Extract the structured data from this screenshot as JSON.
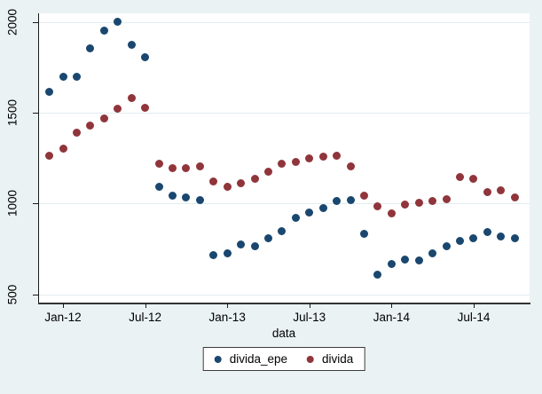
{
  "chart_data": {
    "type": "scatter",
    "title": "",
    "xlabel": "data",
    "ylabel": "",
    "grid": true,
    "legend_position": "bottom-center",
    "x_categories": [
      "Dec-11",
      "Jan-12",
      "Feb-12",
      "Mar-12",
      "Apr-12",
      "May-12",
      "Jun-12",
      "Jul-12",
      "Aug-12",
      "Sep-12",
      "Oct-12",
      "Nov-12",
      "Dec-12",
      "Jan-13",
      "Feb-13",
      "Mar-13",
      "Apr-13",
      "May-13",
      "Jun-13",
      "Jul-13",
      "Aug-13",
      "Sep-13",
      "Oct-13",
      "Nov-13",
      "Dec-13",
      "Jan-14",
      "Feb-14",
      "Mar-14",
      "Apr-14",
      "May-14",
      "Jun-14",
      "Jul-14",
      "Aug-14",
      "Sep-14",
      "Oct-14"
    ],
    "x_ticks": [
      {
        "index": 1,
        "label": "Jan-12"
      },
      {
        "index": 7,
        "label": "Jul-12"
      },
      {
        "index": 13,
        "label": "Jan-13"
      },
      {
        "index": 19,
        "label": "Jul-13"
      },
      {
        "index": 25,
        "label": "Jan-14"
      },
      {
        "index": 31,
        "label": "Jul-14"
      }
    ],
    "y_ticks": [
      {
        "value": 500,
        "label": "500"
      },
      {
        "value": 1000,
        "label": "1000"
      },
      {
        "value": 1500,
        "label": "1500"
      },
      {
        "value": 2000,
        "label": "2000"
      }
    ],
    "ylim": [
      455,
      2045
    ],
    "series": [
      {
        "name": "divida_epe",
        "color": "#1a476f",
        "values": [
          1615,
          1700,
          1700,
          1855,
          1950,
          2000,
          1875,
          1805,
          1090,
          1045,
          1035,
          1020,
          715,
          725,
          775,
          765,
          810,
          850,
          920,
          950,
          975,
          1015,
          1020,
          835,
          610,
          665,
          690,
          685,
          725,
          765,
          795,
          810,
          845,
          820,
          810
        ]
      },
      {
        "name": "divida",
        "color": "#90353b",
        "values": [
          1265,
          1300,
          1390,
          1430,
          1470,
          1520,
          1580,
          1525,
          1220,
          1195,
          1195,
          1205,
          1120,
          1090,
          1110,
          1135,
          1175,
          1220,
          1230,
          1250,
          1260,
          1265,
          1205,
          1045,
          985,
          945,
          995,
          1005,
          1015,
          1025,
          1145,
          1135,
          1065,
          1075,
          1035
        ]
      }
    ],
    "colors": {
      "background": "#eaf2f3",
      "plot_background": "#ffffff",
      "gridline": "#e2edf0",
      "axis": "#1a1a1a"
    }
  }
}
